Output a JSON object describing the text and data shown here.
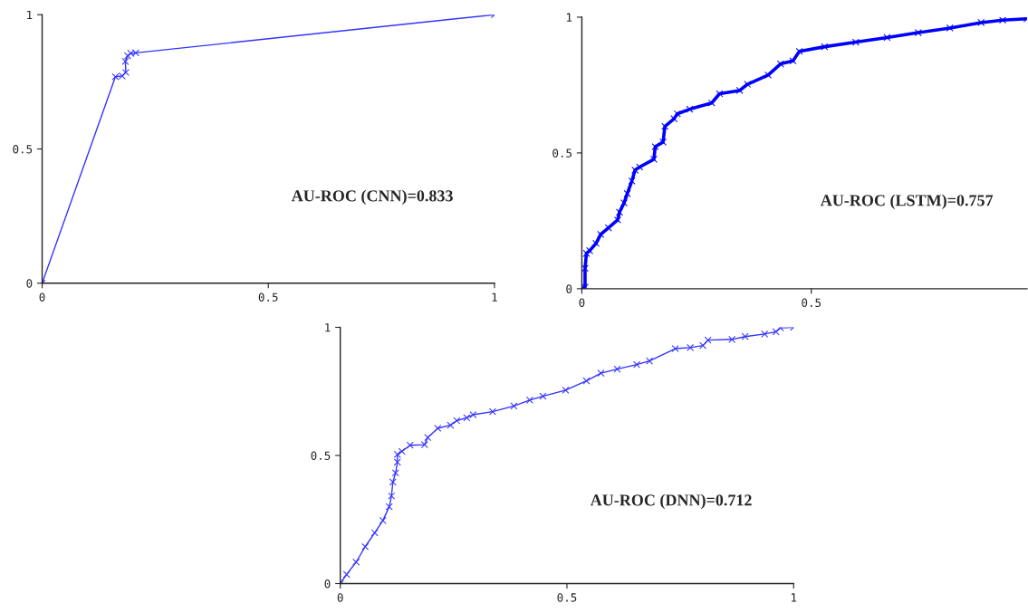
{
  "chart_data": [
    {
      "type": "line",
      "marker": "cross",
      "annotations": [
        "AU-ROC (CNN)=0.833"
      ],
      "xlim": [
        0,
        1
      ],
      "ylim": [
        0,
        1
      ],
      "xticks": [
        0,
        0.5,
        1
      ],
      "yticks": [
        0,
        0.5,
        1
      ],
      "x": [
        0,
        0.162,
        0.177,
        0.185,
        0.184,
        0.189,
        0.196,
        0.207,
        1
      ],
      "series": [
        {
          "color": "#3333ff",
          "values": [
            0,
            0.769,
            0.772,
            0.785,
            0.826,
            0.847,
            0.856,
            0.858,
            1
          ]
        }
      ]
    },
    {
      "type": "line",
      "marker": "cross",
      "annotations": [
        "AU-ROC (LSTM)=0.757"
      ],
      "xlim": [
        0,
        0.97
      ],
      "ylim": [
        0,
        1
      ],
      "xticks": [
        0,
        0.5
      ],
      "yticks": [
        0,
        0.5,
        1
      ],
      "x": [
        0,
        0.007,
        0.007,
        0.01,
        0.017,
        0.031,
        0.041,
        0.058,
        0.078,
        0.082,
        0.092,
        0.099,
        0.109,
        0.116,
        0.126,
        0.157,
        0.16,
        0.177,
        0.181,
        0.201,
        0.208,
        0.235,
        0.283,
        0.3,
        0.344,
        0.361,
        0.406,
        0.433,
        0.46,
        0.474,
        0.529,
        0.597,
        0.665,
        0.733,
        0.802,
        0.87,
        0.917,
        0.97
      ],
      "series": [
        {
          "color": "#0000ff",
          "values": [
            0,
            0.006,
            0.075,
            0.13,
            0.14,
            0.167,
            0.2,
            0.224,
            0.253,
            0.282,
            0.316,
            0.35,
            0.397,
            0.437,
            0.448,
            0.477,
            0.523,
            0.54,
            0.598,
            0.626,
            0.644,
            0.661,
            0.684,
            0.718,
            0.73,
            0.753,
            0.787,
            0.828,
            0.839,
            0.874,
            0.891,
            0.908,
            0.925,
            0.943,
            0.96,
            0.98,
            0.989,
            0.994
          ]
        }
      ]
    },
    {
      "type": "line",
      "marker": "cross",
      "annotations": [
        "AU-ROC (DNN)=0.712"
      ],
      "xlim": [
        0,
        1
      ],
      "ylim": [
        0,
        1
      ],
      "xticks": [
        0,
        0.5,
        1
      ],
      "yticks": [
        0,
        0.5,
        1
      ],
      "x": [
        0,
        0.014,
        0.035,
        0.055,
        0.076,
        0.094,
        0.108,
        0.113,
        0.116,
        0.122,
        0.126,
        0.126,
        0.136,
        0.154,
        0.186,
        0.193,
        0.215,
        0.243,
        0.257,
        0.279,
        0.293,
        0.336,
        0.383,
        0.418,
        0.447,
        0.497,
        0.543,
        0.575,
        0.611,
        0.654,
        0.682,
        0.739,
        0.772,
        0.8,
        0.811,
        0.864,
        0.893,
        0.936,
        0.961,
        0.971,
        1
      ],
      "series": [
        {
          "color": "#3333ff",
          "values": [
            0,
            0.036,
            0.084,
            0.144,
            0.198,
            0.246,
            0.3,
            0.342,
            0.396,
            0.432,
            0.474,
            0.504,
            0.516,
            0.54,
            0.542,
            0.57,
            0.606,
            0.618,
            0.636,
            0.647,
            0.659,
            0.671,
            0.693,
            0.716,
            0.731,
            0.755,
            0.791,
            0.821,
            0.837,
            0.855,
            0.869,
            0.917,
            0.921,
            0.929,
            0.95,
            0.953,
            0.964,
            0.974,
            0.983,
            0.998,
            1
          ]
        }
      ]
    }
  ]
}
